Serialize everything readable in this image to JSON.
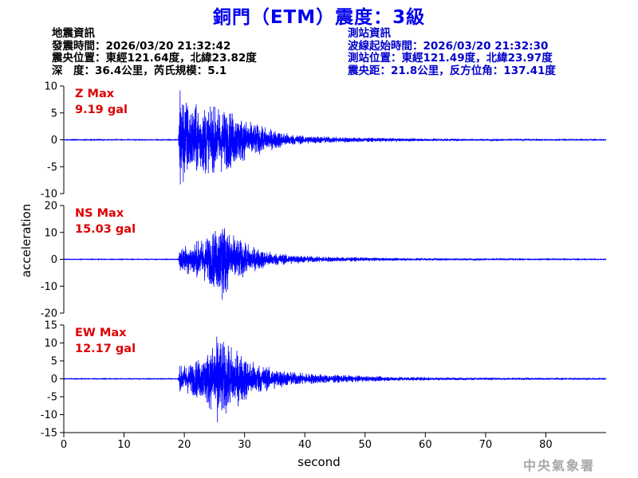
{
  "header": {
    "title": "銅門（ETM）震度：3級"
  },
  "earthquake_info": {
    "heading": "地震資訊",
    "origin_time": "發震時間：2026/03/20 21:32:42",
    "epicenter": "震央位置：東經121.64度，北緯23.82度",
    "depth_magnitude": "深　度：36.4公里，芮氏規模：5.1"
  },
  "station_info": {
    "heading": "測站資訊",
    "record_start": "波線起始時間：2026/03/20 21:32:30",
    "location": "測站位置：東經121.49度，北緯23.97度",
    "distance_azimuth": "震央距：21.8公里，反方位角：137.41度"
  },
  "footer": {
    "agency": "中央氣象署"
  },
  "colors": {
    "title": "#0000ee",
    "station_text": "#0000cc",
    "trace": "#0000ff",
    "peak_label": "#dd0000",
    "axis": "#000000"
  },
  "chart_data": {
    "type": "line",
    "xlabel": "second",
    "ylabel": "acceleration",
    "xlim": [
      0,
      90
    ],
    "x_ticks": [
      0,
      10,
      20,
      30,
      40,
      50,
      60,
      70,
      80
    ],
    "panels": [
      {
        "name": "Z Max",
        "peak_label": "9.19 gal",
        "peak": 9.19,
        "ylim": [
          -10,
          10
        ],
        "y_ticks": [
          -10,
          -5,
          0,
          5,
          10
        ],
        "envelope": [
          [
            0,
            0.06
          ],
          [
            19,
            0.06
          ],
          [
            19.3,
            9.19
          ],
          [
            20,
            8.5
          ],
          [
            21,
            6.5
          ],
          [
            22,
            6.6
          ],
          [
            24,
            6.2
          ],
          [
            26,
            6.1
          ],
          [
            28,
            5.1
          ],
          [
            30,
            3.8
          ],
          [
            32,
            2.9
          ],
          [
            34,
            2.1
          ],
          [
            36,
            1.5
          ],
          [
            38,
            1.0
          ],
          [
            40,
            0.8
          ],
          [
            45,
            0.55
          ],
          [
            50,
            0.4
          ],
          [
            55,
            0.3
          ],
          [
            60,
            0.25
          ],
          [
            65,
            0.2
          ],
          [
            70,
            0.15
          ],
          [
            75,
            0.1
          ],
          [
            89.9,
            0.07
          ]
        ]
      },
      {
        "name": "NS Max",
        "peak_label": "15.03 gal",
        "peak": 15.03,
        "ylim": [
          -20,
          20
        ],
        "y_ticks": [
          -20,
          -10,
          0,
          10,
          20
        ],
        "envelope": [
          [
            0,
            0.1
          ],
          [
            19,
            0.1
          ],
          [
            19.2,
            4.5
          ],
          [
            21,
            5.8
          ],
          [
            23,
            7.5
          ],
          [
            25,
            10.5
          ],
          [
            26.3,
            15.03
          ],
          [
            27.5,
            10
          ],
          [
            29,
            7.6
          ],
          [
            31,
            5
          ],
          [
            33,
            3.4
          ],
          [
            35,
            2.4
          ],
          [
            38,
            1.7
          ],
          [
            40,
            1.3
          ],
          [
            45,
            0.9
          ],
          [
            50,
            0.65
          ],
          [
            55,
            0.5
          ],
          [
            60,
            0.4
          ],
          [
            65,
            0.35
          ],
          [
            70,
            0.25
          ],
          [
            75,
            0.2
          ],
          [
            89.9,
            0.12
          ]
        ]
      },
      {
        "name": "EW Max",
        "peak_label": "12.17 gal",
        "peak": 12.17,
        "ylim": [
          -15,
          15
        ],
        "y_ticks": [
          -15,
          -10,
          -5,
          0,
          5,
          10,
          15
        ],
        "envelope": [
          [
            0,
            0.08
          ],
          [
            19,
            0.08
          ],
          [
            19.2,
            3.5
          ],
          [
            21,
            4.3
          ],
          [
            23,
            6.0
          ],
          [
            24.5,
            8.8
          ],
          [
            25.5,
            12.17
          ],
          [
            27,
            9.5
          ],
          [
            29,
            7.6
          ],
          [
            31,
            5
          ],
          [
            33,
            3.8
          ],
          [
            35,
            2.9
          ],
          [
            37,
            2.1
          ],
          [
            40,
            1.6
          ],
          [
            45,
            1.1
          ],
          [
            50,
            0.8
          ],
          [
            55,
            0.6
          ],
          [
            60,
            0.45
          ],
          [
            65,
            0.35
          ],
          [
            70,
            0.3
          ],
          [
            75,
            0.25
          ],
          [
            89.9,
            0.15
          ]
        ]
      }
    ]
  }
}
